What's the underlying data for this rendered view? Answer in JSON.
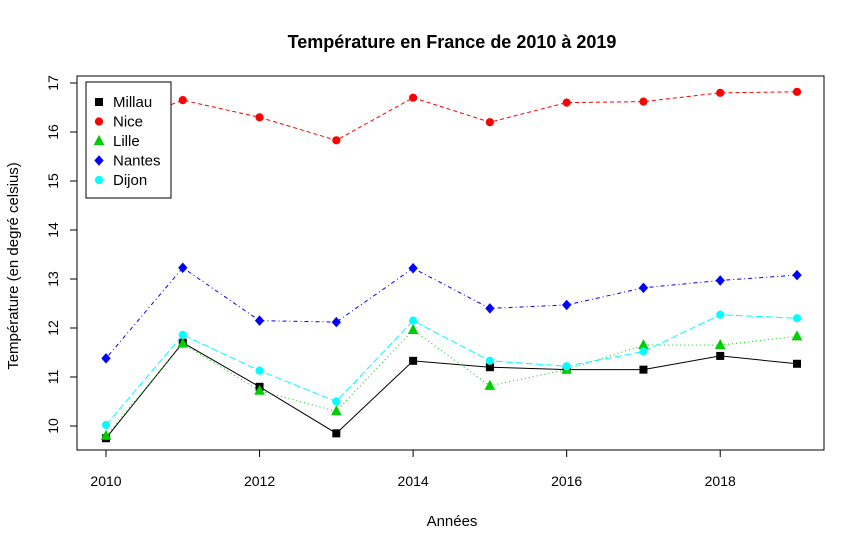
{
  "chart_data": {
    "type": "line",
    "title": "Température en France de 2010 à 2019",
    "xlabel": "Années",
    "ylabel": "Température (en degré celsius)",
    "xlim": [
      2010,
      2019
    ],
    "ylim": [
      10,
      17
    ],
    "x": [
      2010,
      2011,
      2012,
      2013,
      2014,
      2015,
      2016,
      2017,
      2018,
      2019
    ],
    "x_ticks": [
      "2010",
      "2012",
      "2014",
      "2016",
      "2018"
    ],
    "y_ticks": [
      "10",
      "11",
      "12",
      "13",
      "14",
      "15",
      "16",
      "17"
    ],
    "grid": false,
    "legend_position": "top-left",
    "series": [
      {
        "name": "Millau",
        "color": "#000000",
        "marker": "square",
        "dash": "solid",
        "values": [
          9.75,
          11.7,
          10.8,
          9.85,
          11.33,
          11.2,
          11.15,
          11.15,
          11.43,
          11.27
        ]
      },
      {
        "name": "Nice",
        "color": "#ff0000",
        "marker": "circle",
        "dash": "dashed",
        "values": [
          16.05,
          16.65,
          16.3,
          15.83,
          16.7,
          16.2,
          16.6,
          16.62,
          16.8,
          16.82
        ]
      },
      {
        "name": "Lille",
        "color": "#00cd00",
        "marker": "triangle",
        "dash": "dotted",
        "values": [
          9.8,
          11.68,
          10.72,
          10.3,
          11.96,
          10.82,
          11.15,
          11.65,
          11.65,
          11.83
        ]
      },
      {
        "name": "Nantes",
        "color": "#0000ff",
        "marker": "diamond",
        "dash": "dotdash",
        "values": [
          11.38,
          13.23,
          12.15,
          12.12,
          13.22,
          12.4,
          12.47,
          12.82,
          12.97,
          13.08
        ]
      },
      {
        "name": "Dijon",
        "color": "#00ffff",
        "marker": "circle",
        "dash": "longdash",
        "values": [
          10.02,
          11.86,
          11.13,
          10.5,
          12.15,
          11.33,
          11.22,
          11.52,
          12.27,
          12.2
        ]
      }
    ]
  }
}
